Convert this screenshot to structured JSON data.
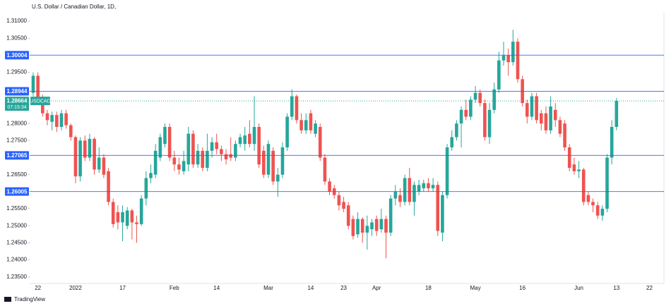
{
  "chart_data": {
    "type": "candlestick",
    "title": "U.S. Dollar / Canadian Dollar, 1D,",
    "logo": "TradingView",
    "categories": [
      null,
      "22",
      null,
      null,
      null,
      null,
      null,
      null,
      null,
      "2022",
      null,
      null,
      null,
      null,
      null,
      null,
      null,
      null,
      null,
      "17",
      null,
      null,
      null,
      null,
      null,
      null,
      null,
      null,
      null,
      null,
      "Feb",
      null,
      null,
      null,
      null,
      null,
      null,
      null,
      null,
      "14",
      null,
      null,
      null,
      null,
      null,
      null,
      null,
      null,
      null,
      null,
      "Mar",
      null,
      null,
      null,
      null,
      null,
      null,
      null,
      null,
      "14",
      null,
      null,
      null,
      null,
      null,
      null,
      "23",
      null,
      null,
      null,
      null,
      null,
      null,
      "Apr",
      null,
      null,
      null,
      null,
      null,
      null,
      null,
      null,
      null,
      null,
      "18",
      null,
      null,
      null,
      null,
      null,
      null,
      null,
      null,
      null,
      "May",
      null,
      null,
      null,
      null,
      null,
      null,
      null,
      null,
      null,
      "16",
      null,
      null,
      null,
      null,
      null,
      null,
      null,
      null,
      null,
      null,
      null,
      "Jun",
      null,
      null,
      null,
      null,
      null,
      null,
      null,
      "13",
      null,
      null,
      null,
      null,
      null,
      null,
      "22"
    ],
    "open": [
      1.289,
      1.294,
      1.287,
      1.283,
      1.2805,
      1.2825,
      1.279,
      1.283,
      1.2795,
      1.276,
      1.2645,
      1.275,
      1.27,
      1.2755,
      1.2665,
      1.27,
      1.266,
      1.257,
      1.254,
      1.251,
      1.25,
      1.2545,
      1.251,
      1.2505,
      1.258,
      1.264,
      1.265,
      1.27,
      1.274,
      1.279,
      1.27,
      1.268,
      1.266,
      1.268,
      1.277,
      1.268,
      1.272,
      1.267,
      1.272,
      1.2745,
      1.2725,
      1.271,
      1.271,
      1.27,
      1.274,
      1.274,
      1.277,
      1.274,
      1.279,
      1.272,
      1.265,
      1.272,
      1.263,
      1.265,
      1.273,
      1.282,
      1.288,
      1.281,
      1.278,
      1.283,
      1.277,
      1.279,
      1.27,
      1.263,
      1.261,
      1.259,
      1.257,
      1.256,
      1.252,
      1.2475,
      1.252,
      1.248,
      1.249,
      1.252,
      1.249,
      1.252,
      1.248,
      1.258,
      1.259,
      1.257,
      1.264,
      1.257,
      1.26,
      1.261,
      1.2625,
      1.261,
      1.262,
      1.248,
      1.259,
      1.273,
      1.276,
      1.28,
      1.284,
      1.282,
      1.287,
      1.289,
      1.286,
      1.276,
      1.284,
      1.29,
      1.2985,
      1.3,
      1.298,
      1.304,
      1.293,
      1.286,
      1.282,
      1.288,
      1.283,
      1.283,
      1.278,
      1.284,
      1.281,
      1.28,
      1.273,
      1.268,
      1.266,
      1.2665,
      1.259,
      1.257,
      1.256,
      1.253,
      1.255,
      1.27,
      1.279,
      null,
      null,
      null,
      null,
      null,
      null,
      null
    ],
    "high": [
      1.295,
      1.295,
      1.2885,
      1.284,
      1.2835,
      1.2835,
      1.284,
      1.284,
      1.28,
      1.2765,
      1.276,
      1.2765,
      1.277,
      1.276,
      1.273,
      1.271,
      1.267,
      1.258,
      1.256,
      1.256,
      1.2555,
      1.255,
      1.253,
      1.259,
      1.266,
      1.268,
      1.274,
      1.277,
      1.28,
      1.28,
      1.272,
      1.27,
      1.272,
      1.279,
      1.278,
      1.274,
      1.273,
      1.277,
      1.276,
      1.277,
      1.2735,
      1.2725,
      1.276,
      1.275,
      1.277,
      1.279,
      1.281,
      1.288,
      1.28,
      1.2735,
      1.275,
      1.273,
      1.267,
      1.2745,
      1.283,
      1.29,
      1.2885,
      1.283,
      1.283,
      1.284,
      1.281,
      1.28,
      1.271,
      1.264,
      1.262,
      1.26,
      1.2585,
      1.257,
      1.253,
      1.254,
      1.2525,
      1.253,
      1.252,
      1.253,
      1.255,
      1.253,
      1.259,
      1.262,
      1.261,
      1.265,
      1.267,
      1.263,
      1.2635,
      1.2635,
      1.264,
      1.264,
      1.263,
      1.26,
      1.274,
      1.278,
      1.281,
      1.285,
      1.287,
      1.288,
      1.291,
      1.29,
      1.287,
      1.286,
      1.292,
      1.301,
      1.304,
      1.302,
      1.3075,
      1.305,
      1.294,
      1.287,
      1.289,
      1.289,
      1.284,
      1.285,
      1.288,
      1.286,
      1.282,
      1.281,
      1.274,
      1.27,
      1.269,
      1.267,
      1.26,
      1.258,
      1.257,
      1.256,
      1.271,
      1.281,
      1.2875,
      null,
      null,
      null,
      null,
      null,
      null,
      null
    ],
    "low": [
      1.288,
      1.286,
      1.282,
      1.2795,
      1.278,
      1.2775,
      1.278,
      1.2785,
      1.275,
      1.2625,
      1.263,
      1.269,
      1.269,
      1.265,
      1.2655,
      1.264,
      1.256,
      1.2495,
      1.249,
      1.2455,
      1.249,
      1.246,
      1.245,
      1.25,
      1.256,
      1.2625,
      1.264,
      1.269,
      1.273,
      1.269,
      1.266,
      1.265,
      1.265,
      1.266,
      1.267,
      1.267,
      1.266,
      1.266,
      1.27,
      1.271,
      1.269,
      1.268,
      1.269,
      1.269,
      1.273,
      1.272,
      1.273,
      1.272,
      1.267,
      1.264,
      1.264,
      1.262,
      1.2585,
      1.264,
      1.272,
      1.281,
      1.28,
      1.277,
      1.277,
      1.277,
      1.276,
      1.269,
      1.262,
      1.259,
      1.258,
      1.2545,
      1.254,
      1.249,
      1.246,
      1.2465,
      1.245,
      1.243,
      1.247,
      1.247,
      1.248,
      1.2405,
      1.247,
      1.256,
      1.2555,
      1.256,
      1.256,
      1.253,
      1.259,
      1.26,
      1.26,
      1.26,
      1.247,
      1.2455,
      1.258,
      1.272,
      1.275,
      1.273,
      1.281,
      1.281,
      1.286,
      1.285,
      1.275,
      1.274,
      1.283,
      1.289,
      1.297,
      1.294,
      1.297,
      1.292,
      1.285,
      1.28,
      1.281,
      1.28,
      1.278,
      1.277,
      1.277,
      1.279,
      1.276,
      1.272,
      1.266,
      1.265,
      1.264,
      1.256,
      1.256,
      1.254,
      1.252,
      1.2515,
      1.254,
      1.268,
      1.278,
      null,
      null,
      null,
      null,
      null,
      null,
      null
    ],
    "close": [
      1.294,
      1.287,
      1.283,
      1.281,
      1.2825,
      1.279,
      1.283,
      1.2795,
      1.276,
      1.2645,
      1.275,
      1.27,
      1.2755,
      1.2665,
      1.27,
      1.265,
      1.257,
      1.2505,
      1.251,
      1.254,
      1.2545,
      1.251,
      1.2505,
      1.258,
      1.264,
      1.2655,
      1.272,
      1.276,
      1.279,
      1.27,
      1.268,
      1.2665,
      1.269,
      1.277,
      1.268,
      1.272,
      1.267,
      1.272,
      1.2745,
      1.2725,
      1.271,
      1.2695,
      1.27,
      1.274,
      1.276,
      1.2765,
      1.274,
      1.279,
      1.268,
      1.265,
      1.274,
      1.263,
      1.265,
      1.273,
      1.282,
      1.288,
      1.281,
      1.278,
      1.281,
      1.278,
      1.28,
      1.27,
      1.263,
      1.26,
      1.259,
      1.256,
      1.255,
      1.25,
      1.247,
      1.252,
      1.248,
      1.25,
      1.251,
      1.2485,
      1.252,
      1.248,
      1.258,
      1.26,
      1.257,
      1.264,
      1.257,
      1.262,
      1.262,
      1.2625,
      1.261,
      1.262,
      1.2485,
      1.259,
      1.273,
      1.276,
      1.28,
      1.284,
      1.282,
      1.287,
      1.289,
      1.286,
      1.276,
      1.284,
      1.29,
      1.2985,
      1.3,
      1.298,
      1.304,
      1.293,
      1.286,
      1.282,
      1.288,
      1.281,
      1.28,
      1.278,
      1.285,
      1.281,
      1.277,
      1.273,
      1.267,
      1.266,
      1.2665,
      1.257,
      1.257,
      1.256,
      1.253,
      1.255,
      1.27,
      1.279,
      1.28664,
      null,
      null,
      null,
      null,
      null,
      null,
      null
    ],
    "up_color": "#26a69a",
    "down_color": "#ef5350",
    "ylim": [
      1.2331,
      1.3125
    ],
    "yticks": [
      {
        "value": 1.31,
        "label": "1.31000"
      },
      {
        "value": 1.305,
        "label": "1.30500"
      },
      {
        "value": 1.295,
        "label": "1.29500"
      },
      {
        "value": 1.28,
        "label": "1.28000"
      },
      {
        "value": 1.275,
        "label": "1.27500"
      },
      {
        "value": 1.265,
        "label": "1.26500"
      },
      {
        "value": 1.255,
        "label": "1.25500"
      },
      {
        "value": 1.25,
        "label": "1.25000"
      },
      {
        "value": 1.245,
        "label": "1.24500"
      },
      {
        "value": 1.24,
        "label": "1.24000"
      },
      {
        "value": 1.235,
        "label": "1.23500"
      }
    ],
    "levels": [
      1.30004,
      1.28944,
      1.27065,
      1.26005
    ],
    "level_color": "#2962ff",
    "last_price": {
      "value": 1.28664,
      "symbol": "USDCAD",
      "countdown": "07:15:34"
    }
  }
}
